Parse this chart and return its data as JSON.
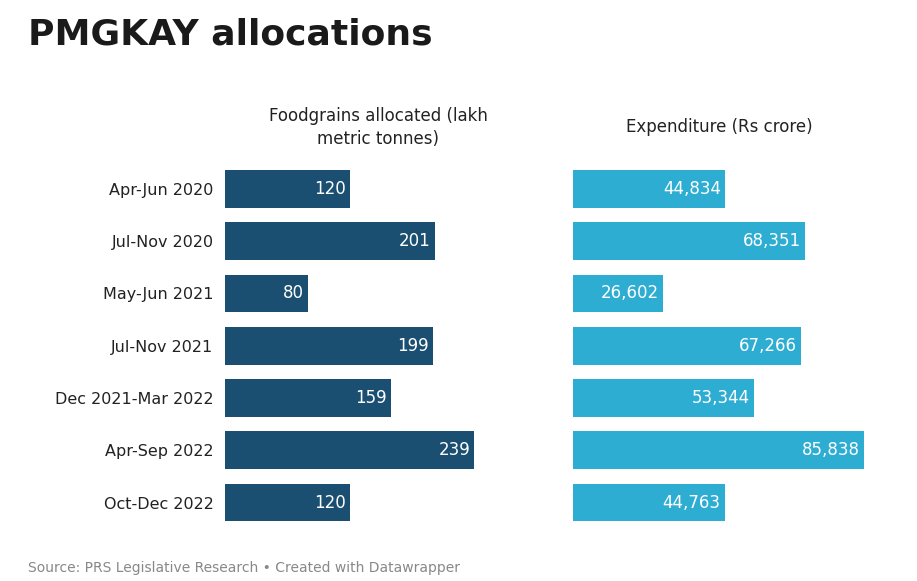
{
  "title": "PMGKAY allocations",
  "categories": [
    "Apr-Jun 2020",
    "Jul-Nov 2020",
    "May-Jun 2021",
    "Jul-Nov 2021",
    "Dec 2021-Mar 2022",
    "Apr-Sep 2022",
    "Oct-Dec 2022"
  ],
  "foodgrains": [
    120,
    201,
    80,
    199,
    159,
    239,
    120
  ],
  "expenditure": [
    44834,
    68351,
    26602,
    67266,
    53344,
    85838,
    44763
  ],
  "foodgrains_labels": [
    "120",
    "201",
    "80",
    "199",
    "159",
    "239",
    "120"
  ],
  "expenditure_labels": [
    "44,834",
    "68,351",
    "26,602",
    "67,266",
    "53,344",
    "85,838",
    "44,763"
  ],
  "foodgrains_color": "#1b4f72",
  "expenditure_color": "#2eadd3",
  "col1_header": "Foodgrains allocated (lakh\nmetric tonnes)",
  "col2_header": "Expenditure (Rs crore)",
  "source_text": "Source: PRS Legislative Research • Created with Datawrapper",
  "bg_color": "#ffffff",
  "bar_height": 0.72,
  "foodgrains_max": 239,
  "expenditure_max": 85838,
  "title_fontsize": 26,
  "label_fontsize": 12,
  "category_fontsize": 11.5,
  "header_fontsize": 12,
  "source_fontsize": 10,
  "title_color": "#1a1a1a",
  "label_color": "#ffffff",
  "category_color": "#222222",
  "header_color": "#222222",
  "source_color": "#888888"
}
